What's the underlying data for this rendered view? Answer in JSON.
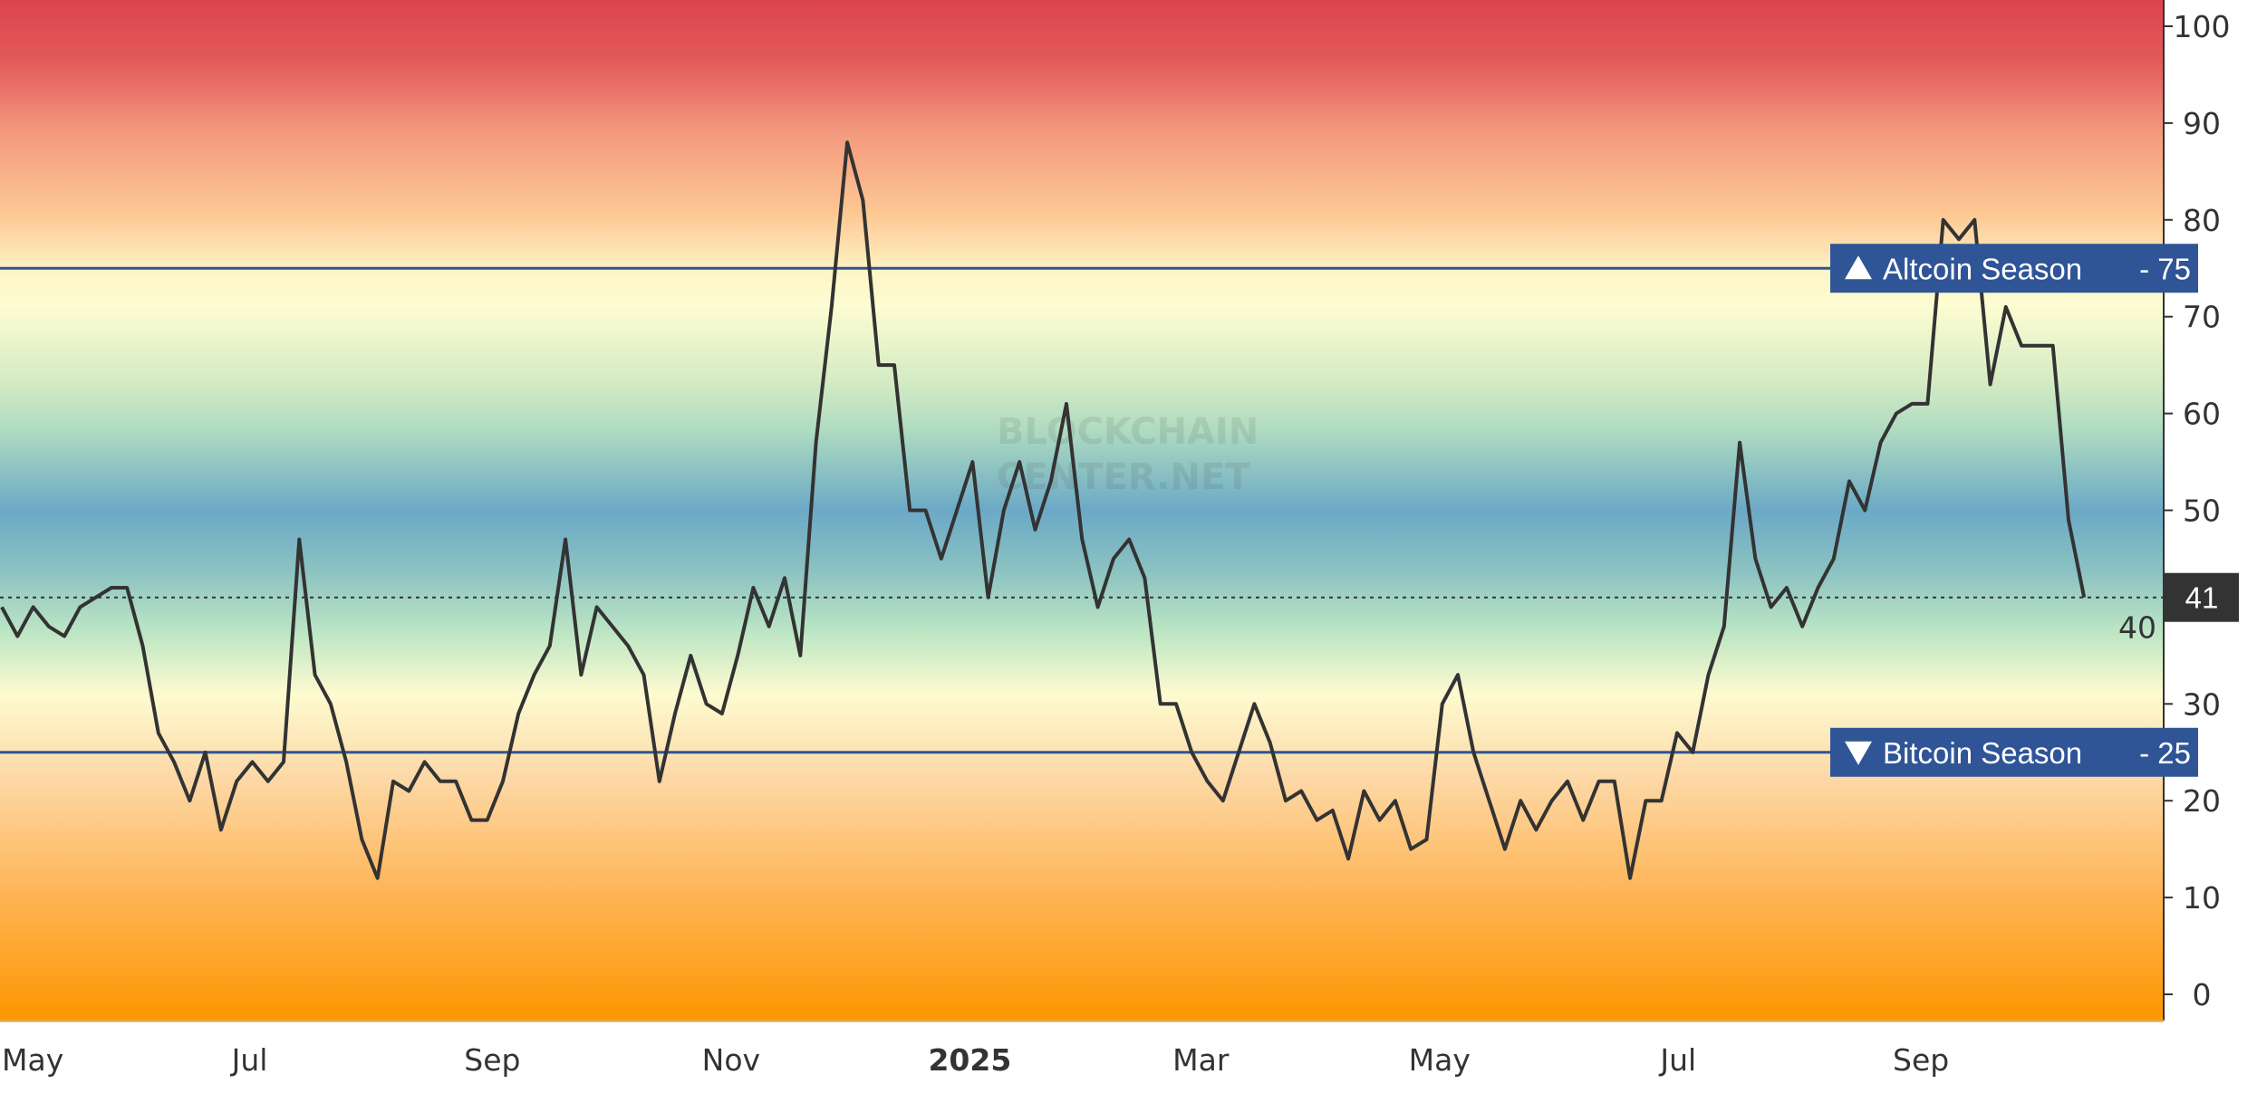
{
  "chart_data": {
    "type": "line",
    "title": "",
    "xlabel": "",
    "ylabel": "",
    "ylim": [
      0,
      100
    ],
    "y_ticks": [
      "0",
      "10",
      "20",
      "30",
      "40",
      "50",
      "60",
      "70",
      "80",
      "90",
      "100"
    ],
    "x_ticks": [
      {
        "date": "2024-05-01",
        "label": "May"
      },
      {
        "date": "2024-07-01",
        "label": "Jul"
      },
      {
        "date": "2024-09-01",
        "label": "Sep"
      },
      {
        "date": "2024-11-01",
        "label": "Nov"
      },
      {
        "date": "2025-01-01",
        "label": "2025",
        "bold": true
      },
      {
        "date": "2025-03-01",
        "label": "Mar"
      },
      {
        "date": "2025-05-01",
        "label": "May"
      },
      {
        "date": "2025-07-01",
        "label": "Jul"
      },
      {
        "date": "2025-09-01",
        "label": "Sep"
      }
    ],
    "grid": false,
    "background": "vertical gradient by value: red at 100, yellow near 75, blue near 50, yellow near 25, orange at 0",
    "line_color": "#333333",
    "thresholds": [
      {
        "value": 75,
        "label": "Altcoin Season",
        "value_label": "75",
        "direction": "up",
        "color": "#2f5597"
      },
      {
        "value": 25,
        "label": "Bitcoin Season",
        "value_label": "25",
        "direction": "down",
        "color": "#2f5597"
      }
    ],
    "current": {
      "value": 41,
      "label": "41",
      "color": "#333333"
    },
    "watermark": "BLOCKCHAIN CENTER.NET",
    "series": [
      {
        "x": [
          "2024-05-01",
          "2024-05-05",
          "2024-05-09",
          "2024-05-13",
          "2024-05-17",
          "2024-05-21",
          "2024-05-25",
          "2024-05-29",
          "2024-06-02",
          "2024-06-06",
          "2024-06-10",
          "2024-06-14",
          "2024-06-18",
          "2024-06-22",
          "2024-06-26",
          "2024-06-30",
          "2024-07-04",
          "2024-07-08",
          "2024-07-12",
          "2024-07-16",
          "2024-07-20",
          "2024-07-24",
          "2024-07-28",
          "2024-08-01",
          "2024-08-05",
          "2024-08-09",
          "2024-08-13",
          "2024-08-17",
          "2024-08-21",
          "2024-08-25",
          "2024-08-29",
          "2024-09-02",
          "2024-09-06",
          "2024-09-10",
          "2024-09-14",
          "2024-09-18",
          "2024-09-22",
          "2024-09-26",
          "2024-09-30",
          "2024-10-04",
          "2024-10-08",
          "2024-10-12",
          "2024-10-16",
          "2024-10-20",
          "2024-10-24",
          "2024-10-28",
          "2024-11-01",
          "2024-11-05",
          "2024-11-09",
          "2024-11-13",
          "2024-11-17",
          "2024-11-21",
          "2024-11-25",
          "2024-11-29",
          "2024-12-03",
          "2024-12-07",
          "2024-12-11",
          "2024-12-15",
          "2024-12-19",
          "2024-12-23",
          "2024-12-27",
          "2024-12-31",
          "2025-01-04",
          "2025-01-08",
          "2025-01-12",
          "2025-01-16",
          "2025-01-20",
          "2025-01-24",
          "2025-01-28",
          "2025-02-01",
          "2025-02-05",
          "2025-02-09",
          "2025-02-13",
          "2025-02-17",
          "2025-02-21",
          "2025-02-25",
          "2025-03-01",
          "2025-03-05",
          "2025-03-09",
          "2025-03-13",
          "2025-03-17",
          "2025-03-21",
          "2025-03-25",
          "2025-03-29",
          "2025-04-02",
          "2025-04-06",
          "2025-04-10",
          "2025-04-14",
          "2025-04-18",
          "2025-04-22",
          "2025-04-26",
          "2025-04-30",
          "2025-05-04",
          "2025-05-08",
          "2025-05-12",
          "2025-05-16",
          "2025-05-20",
          "2025-05-24",
          "2025-05-28",
          "2025-06-01",
          "2025-06-05",
          "2025-06-09",
          "2025-06-13",
          "2025-06-17",
          "2025-06-21",
          "2025-06-25",
          "2025-06-29",
          "2025-07-03",
          "2025-07-07",
          "2025-07-11",
          "2025-07-15",
          "2025-07-19",
          "2025-07-23",
          "2025-07-27",
          "2025-07-31",
          "2025-08-04",
          "2025-08-08",
          "2025-08-12",
          "2025-08-16",
          "2025-08-20",
          "2025-08-24",
          "2025-08-28",
          "2025-09-01",
          "2025-09-05",
          "2025-09-09",
          "2025-09-13",
          "2025-09-17",
          "2025-09-21",
          "2025-09-25",
          "2025-09-29",
          "2025-10-03",
          "2025-10-07",
          "2025-10-11",
          "2025-10-15"
        ],
        "y": [
          40,
          37,
          40,
          38,
          37,
          40,
          41,
          42,
          42,
          36,
          27,
          24,
          20,
          25,
          17,
          22,
          24,
          22,
          24,
          47,
          33,
          30,
          24,
          16,
          12,
          22,
          21,
          24,
          22,
          22,
          18,
          18,
          22,
          29,
          33,
          36,
          47,
          33,
          40,
          38,
          36,
          33,
          22,
          29,
          35,
          30,
          29,
          35,
          42,
          38,
          43,
          35,
          57,
          71,
          88,
          82,
          65,
          65,
          50,
          50,
          45,
          50,
          55,
          41,
          50,
          55,
          48,
          53,
          61,
          47,
          40,
          45,
          47,
          43,
          30,
          30,
          25,
          22,
          20,
          25,
          30,
          26,
          20,
          21,
          18,
          19,
          14,
          21,
          18,
          20,
          15,
          16,
          30,
          33,
          25,
          20,
          15,
          20,
          17,
          20,
          22,
          18,
          22,
          22,
          12,
          20,
          20,
          27,
          25,
          33,
          38,
          57,
          45,
          40,
          42,
          38,
          42,
          45,
          53,
          50,
          57,
          60,
          61,
          61,
          80,
          78,
          80,
          63,
          71,
          67,
          67,
          67,
          49,
          41
        ]
      }
    ]
  }
}
